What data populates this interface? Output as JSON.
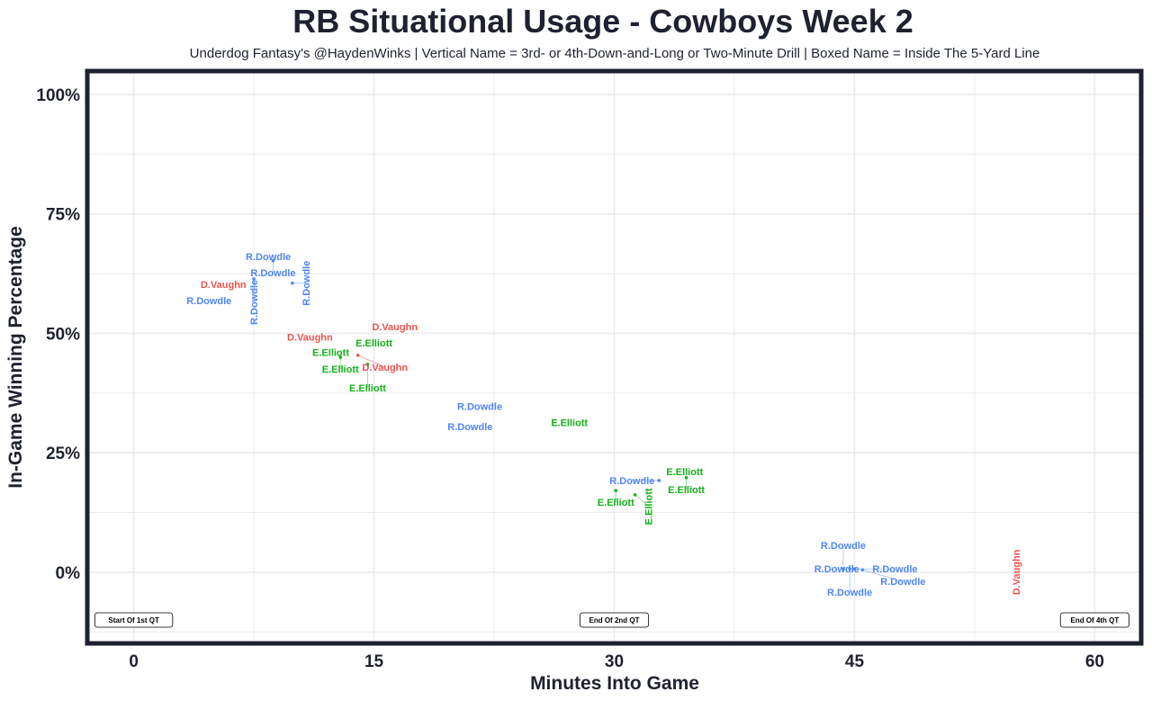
{
  "chart_data": {
    "type": "scatter",
    "title": "RB Situational Usage - Cowboys Week 2",
    "subtitle": "Underdog Fantasy's @HaydenWinks | Vertical Name = 3rd- or 4th-Down-and-Long or Two-Minute Drill | Boxed Name = Inside The 5-Yard Line",
    "xlabel": "Minutes Into Game",
    "ylabel": "In-Game Winning Percentage",
    "xlim": [
      -2.9,
      62.9
    ],
    "ylim": [
      -14.9,
      104.9
    ],
    "x_ticks": [
      0,
      15,
      30,
      45,
      60
    ],
    "x_tick_labels": [
      "0",
      "15",
      "30",
      "45",
      "60"
    ],
    "y_ticks": [
      0,
      25,
      50,
      75,
      100
    ],
    "y_tick_labels": [
      "0%",
      "25%",
      "50%",
      "75%",
      "100%"
    ],
    "grid": true,
    "colors": {
      "R.Dowdle": "#4f86f7",
      "D.Vaughn": "#f0524f",
      "E.Elliott": "#15b01a"
    },
    "points": [
      {
        "name": "R.Dowdle",
        "x": 4.7,
        "y": 56.9,
        "vertical": false
      },
      {
        "name": "D.Vaughn",
        "x": 5.6,
        "y": 60.3,
        "vertical": false
      },
      {
        "name": "R.Dowdle",
        "x": 8.4,
        "y": 66.1,
        "vertical": false
      },
      {
        "name": "R.Dowdle",
        "x": 8.7,
        "y": 65.2,
        "vertical": false
      },
      {
        "name": "R.Dowdle",
        "x": 7.5,
        "y": 61.4,
        "vertical": true
      },
      {
        "name": "R.Dowdle",
        "x": 9.9,
        "y": 60.5,
        "vertical": true
      },
      {
        "name": "D.Vaughn",
        "x": 16.3,
        "y": 51.4,
        "vertical": false
      },
      {
        "name": "D.Vaughn",
        "x": 11.0,
        "y": 49.2,
        "vertical": false
      },
      {
        "name": "E.Elliott",
        "x": 15.0,
        "y": 48.0,
        "vertical": false
      },
      {
        "name": "E.Elliott",
        "x": 12.3,
        "y": 46.0,
        "vertical": false
      },
      {
        "name": "E.Elliott",
        "x": 12.9,
        "y": 45.0,
        "vertical": false
      },
      {
        "name": "D.Vaughn",
        "x": 14.0,
        "y": 45.4,
        "vertical": false
      },
      {
        "name": "E.Elliott",
        "x": 14.6,
        "y": 43.5,
        "vertical": false
      },
      {
        "name": "R.Dowdle",
        "x": 21.6,
        "y": 34.7,
        "vertical": false
      },
      {
        "name": "R.Dowdle",
        "x": 21.0,
        "y": 30.5,
        "vertical": false
      },
      {
        "name": "E.Elliott",
        "x": 27.2,
        "y": 31.3,
        "vertical": false
      },
      {
        "name": "E.Elliott",
        "x": 34.4,
        "y": 21.1,
        "vertical": false
      },
      {
        "name": "E.Elliott",
        "x": 34.5,
        "y": 19.8,
        "vertical": false
      },
      {
        "name": "R.Dowdle",
        "x": 32.8,
        "y": 19.2,
        "vertical": false
      },
      {
        "name": "E.Elliott",
        "x": 30.1,
        "y": 17.1,
        "vertical": false
      },
      {
        "name": "E.Elliott",
        "x": 31.3,
        "y": 16.2,
        "vertical": true
      },
      {
        "name": "R.Dowdle",
        "x": 43.9,
        "y": 0.7,
        "vertical": false
      },
      {
        "name": "R.Dowdle",
        "x": 44.3,
        "y": 0.7,
        "vertical": false
      },
      {
        "name": "R.Dowdle",
        "x": 44.7,
        "y": 0.7,
        "vertical": false
      },
      {
        "name": "R.Dowdle",
        "x": 45.0,
        "y": 0.7,
        "vertical": false
      },
      {
        "name": "R.Dowdle",
        "x": 45.5,
        "y": 0.5,
        "vertical": false
      },
      {
        "name": "D.Vaughn",
        "x": 55.1,
        "y": 0.0,
        "vertical": true
      }
    ],
    "annotations": [
      {
        "text": "Start Of 1st QT",
        "x": 0,
        "y": -10
      },
      {
        "text": "End Of 2nd QT",
        "x": 30,
        "y": -10
      },
      {
        "text": "End Of 4th QT",
        "x": 60,
        "y": -10
      }
    ]
  }
}
